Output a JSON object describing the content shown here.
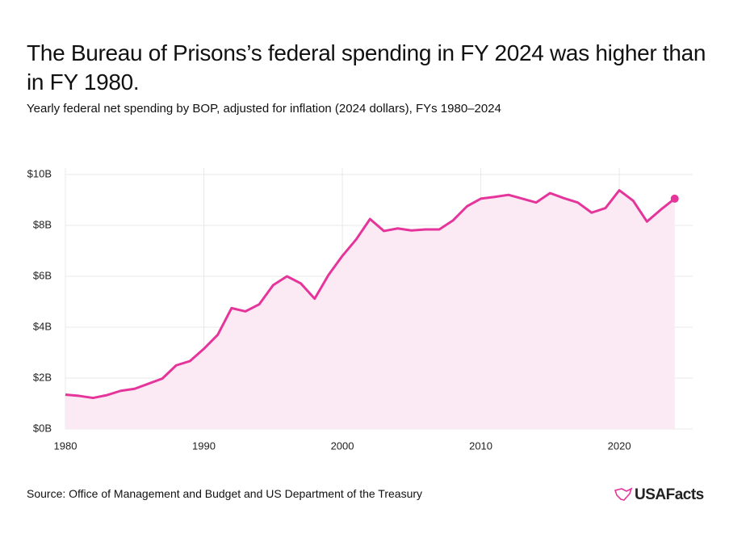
{
  "chart_data": {
    "type": "line",
    "title": "The Bureau of Prisons’s federal spending in FY 2024 was higher than in FY 1980.",
    "subtitle": "Yearly federal net spending by BOP, adjusted for inflation (2024 dollars), FYs 1980–2024",
    "source": "Source: Office of Management and Budget and US Department of the Treasury",
    "brand": "USAFacts",
    "x": [
      1980,
      1981,
      1982,
      1983,
      1984,
      1985,
      1986,
      1987,
      1988,
      1989,
      1990,
      1991,
      1992,
      1993,
      1994,
      1995,
      1996,
      1997,
      1998,
      1999,
      2000,
      2001,
      2002,
      2003,
      2004,
      2005,
      2006,
      2007,
      2008,
      2009,
      2010,
      2011,
      2012,
      2013,
      2014,
      2015,
      2016,
      2017,
      2018,
      2019,
      2020,
      2021,
      2022,
      2023,
      2024
    ],
    "values": [
      1.35,
      1.3,
      1.22,
      1.33,
      1.5,
      1.58,
      1.78,
      1.98,
      2.5,
      2.67,
      3.15,
      3.7,
      4.75,
      4.62,
      4.9,
      5.65,
      6.0,
      5.72,
      5.12,
      6.05,
      6.8,
      7.45,
      8.25,
      7.78,
      7.88,
      7.8,
      7.84,
      7.84,
      8.2,
      8.75,
      9.05,
      9.12,
      9.2,
      9.05,
      8.9,
      9.27,
      9.07,
      8.9,
      8.5,
      8.68,
      9.38,
      8.97,
      8.15,
      8.62,
      9.05
    ],
    "color": "#e5359b",
    "area_color": "#fbe9f3",
    "xlim": [
      1980,
      2025.3
    ],
    "xticks": [
      1980,
      1990,
      2000,
      2010,
      2020
    ],
    "ylim": [
      0,
      10
    ],
    "yticks": [
      {
        "value": 0,
        "label": "$0B"
      },
      {
        "value": 2,
        "label": "$2B"
      },
      {
        "value": 4,
        "label": "$4B"
      },
      {
        "value": 6,
        "label": "$6B"
      },
      {
        "value": 8,
        "label": "$8B"
      },
      {
        "value": 10,
        "label": "$10B"
      }
    ],
    "grid": true
  }
}
